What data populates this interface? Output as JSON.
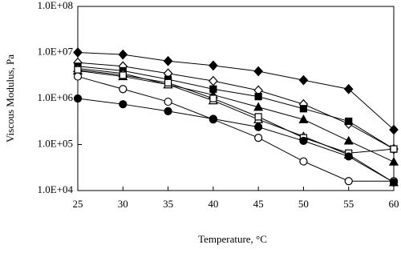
{
  "chart_data": {
    "type": "line",
    "ylabel": "Viscous Modulus, Pa",
    "xlabel": "Temperature, °C",
    "xlim": [
      25,
      60
    ],
    "xticks": [
      25,
      30,
      35,
      40,
      45,
      50,
      55,
      60
    ],
    "ylim": [
      10000,
      100000000
    ],
    "log_y": true,
    "yticks": [
      {
        "value": 10000,
        "label": "1.0E+04"
      },
      {
        "value": 100000,
        "label": "1.0E+05"
      },
      {
        "value": 1000000,
        "label": "1.0E+06"
      },
      {
        "value": 10000000,
        "label": "1.0E+07"
      },
      {
        "value": 100000000,
        "label": "1.0E+08"
      }
    ],
    "x": [
      25,
      30,
      35,
      40,
      45,
      50,
      55,
      60
    ],
    "series": [
      {
        "color": "#000000",
        "marker": "diamond",
        "filled": true,
        "values": [
          10000000,
          9000000,
          6500000,
          5200000,
          3900000,
          2500000,
          1600000,
          210000
        ]
      },
      {
        "color": "#000000",
        "marker": "diamond",
        "filled": false,
        "values": [
          6000000,
          5000000,
          3500000,
          2400000,
          1500000,
          750000,
          280000,
          80000
        ]
      },
      {
        "color": "#000000",
        "marker": "square",
        "filled": true,
        "values": [
          5000000,
          4000000,
          2600000,
          1600000,
          1100000,
          600000,
          320000,
          80000
        ]
      },
      {
        "color": "#000000",
        "marker": "triangle",
        "filled": true,
        "values": [
          4000000,
          3000000,
          2000000,
          1200000,
          650000,
          350000,
          120000,
          42000
        ]
      },
      {
        "color": "#000000",
        "marker": "triangle",
        "filled": false,
        "values": [
          4500000,
          3500000,
          2000000,
          900000,
          350000,
          150000,
          60000,
          15000
        ]
      },
      {
        "color": "#000000",
        "marker": "square",
        "filled": false,
        "values": [
          4200000,
          3200000,
          2200000,
          1000000,
          400000,
          140000,
          65000,
          80000
        ]
      },
      {
        "color": "#000000",
        "marker": "circle",
        "filled": false,
        "values": [
          3000000,
          1600000,
          850000,
          350000,
          140000,
          43000,
          16000,
          16000
        ]
      },
      {
        "color": "#000000",
        "marker": "circle",
        "filled": true,
        "values": [
          1000000,
          750000,
          530000,
          360000,
          240000,
          120000,
          55000,
          15000
        ]
      }
    ]
  }
}
